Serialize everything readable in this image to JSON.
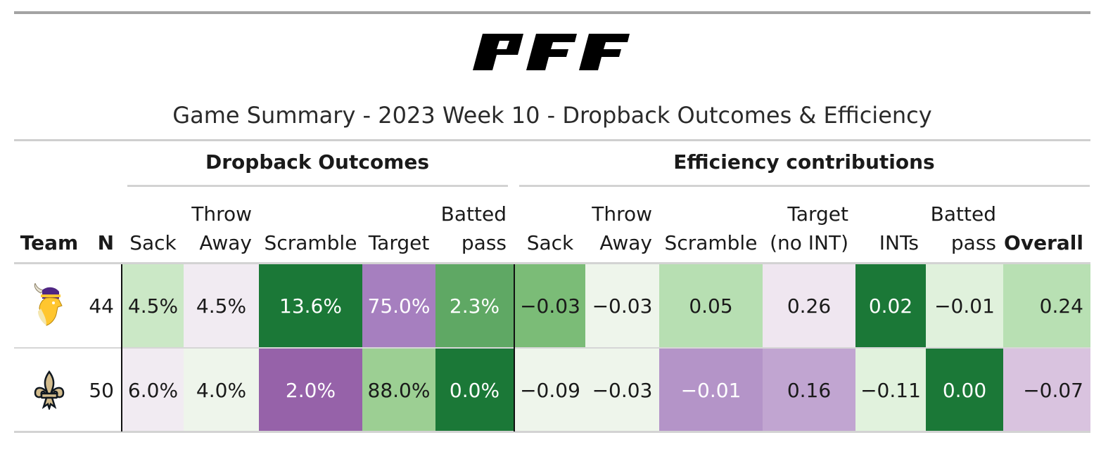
{
  "brand": "PFF",
  "title": "Game Summary - 2023 Week 10 - Dropback Outcomes & Efficiency",
  "spanners": {
    "outcomes": "Dropback Outcomes",
    "efficiency": "Efficiency contributions"
  },
  "columns": {
    "team": "Team",
    "n": "N",
    "out_sack": "Sack",
    "out_throw_away_1": "Throw",
    "out_throw_away_2": "Away",
    "out_scramble": "Scramble",
    "out_target": "Target",
    "out_batted_1": "Batted",
    "out_batted_2": "pass",
    "eff_sack": "Sack",
    "eff_throw_away_1": "Throw",
    "eff_throw_away_2": "Away",
    "eff_scramble": "Scramble",
    "eff_target_1": "Target",
    "eff_target_2": "(no INT)",
    "eff_ints": "INTs",
    "eff_batted_1": "Batted",
    "eff_batted_2": "pass",
    "eff_overall": "Overall"
  },
  "rows": [
    {
      "team_icon": "vikings-logo-icon",
      "n": "44",
      "out_sack": "4.5%",
      "out_throw_away": "4.5%",
      "out_scramble": "13.6%",
      "out_target": "75.0%",
      "out_batted": "2.3%",
      "eff_sack": "−0.03",
      "eff_throw_away": "−0.03",
      "eff_scramble": "0.05",
      "eff_target": "0.26",
      "eff_ints": "0.02",
      "eff_batted": "−0.01",
      "eff_overall": "0.24",
      "colors": {
        "out_sack": "#cbe8c6",
        "out_throw_away": "#f1ebf2",
        "out_scramble": "#1b7837",
        "out_target": "#a67fbf",
        "out_batted": "#5fa864",
        "eff_sack": "#7bbc77",
        "eff_throw_away": "#eef5eb",
        "eff_scramble": "#b7dfb2",
        "eff_target": "#efe6f0",
        "eff_ints": "#1b7837",
        "eff_batted": "#e0f1dc",
        "eff_overall": "#b8e0b3"
      }
    },
    {
      "team_icon": "saints-fleur-de-lis-icon",
      "n": "50",
      "out_sack": "6.0%",
      "out_throw_away": "4.0%",
      "out_scramble": "2.0%",
      "out_target": "88.0%",
      "out_batted": "0.0%",
      "eff_sack": "−0.09",
      "eff_throw_away": "−0.03",
      "eff_scramble": "−0.01",
      "eff_target": "0.16",
      "eff_ints": "−0.11",
      "eff_batted": "0.00",
      "eff_overall": "−0.07",
      "colors": {
        "out_sack": "#f1ebf2",
        "out_throw_away": "#eef5eb",
        "out_scramble": "#9662a9",
        "out_target": "#9ccf93",
        "out_batted": "#1b7837",
        "eff_sack": "#eef5eb",
        "eff_throw_away": "#eef5eb",
        "eff_scramble": "#b494c8",
        "eff_target": "#c1a5d1",
        "eff_ints": "#e1f2dd",
        "eff_batted": "#1b7837",
        "eff_overall": "#d9c3df"
      }
    }
  ]
}
